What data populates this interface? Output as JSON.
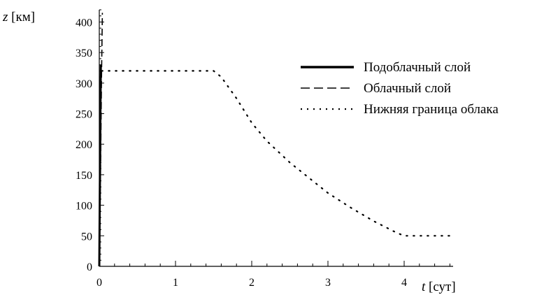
{
  "chart_data": {
    "type": "line",
    "xlabel_var": "t",
    "xlabel_unit": "[сут]",
    "ylabel_var": "z",
    "ylabel_unit": "[км]",
    "xlim": [
      0,
      4.75
    ],
    "ylim": [
      0,
      420
    ],
    "x_ticks": [
      0,
      1,
      2,
      3,
      4
    ],
    "y_ticks": [
      0,
      50,
      100,
      150,
      200,
      250,
      300,
      350,
      400
    ],
    "grid": false,
    "legend_position": "top-right",
    "series": [
      {
        "name": "Подоблачный слой",
        "style": "solid",
        "color": "#000000",
        "x": [
          0.0,
          0.005,
          0.01,
          0.015,
          0.02
        ],
        "y": [
          0,
          80,
          160,
          250,
          330
        ]
      },
      {
        "name": "Облачный слой",
        "style": "dashed",
        "color": "#000000",
        "x": [
          0.0,
          0.01,
          0.02,
          0.03,
          0.04
        ],
        "y": [
          0,
          100,
          200,
          320,
          415
        ]
      },
      {
        "name": "Нижняя граница облака",
        "style": "dotted",
        "color": "#000000",
        "x": [
          0.03,
          0.5,
          1.0,
          1.5,
          1.6,
          1.8,
          2.0,
          2.2,
          2.5,
          2.8,
          3.0,
          3.3,
          3.6,
          3.9,
          4.0,
          4.3,
          4.6
        ],
        "y": [
          320,
          320,
          320,
          320,
          310,
          275,
          235,
          205,
          170,
          140,
          120,
          96,
          74,
          55,
          50,
          50,
          50
        ]
      }
    ]
  }
}
